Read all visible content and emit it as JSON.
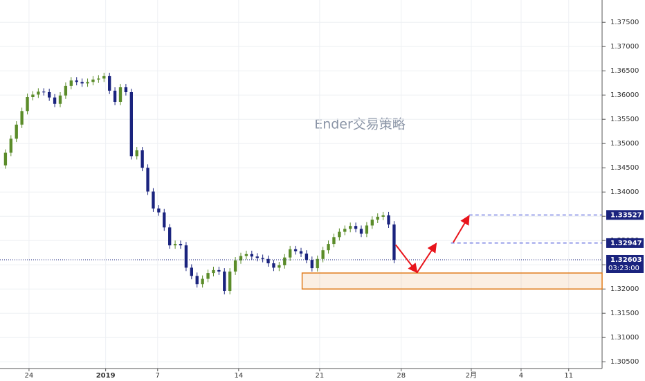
{
  "chart_data": {
    "type": "candlestick",
    "watermark": "Ender交易策略",
    "x": [
      1,
      2,
      3,
      4,
      5,
      6,
      7,
      8,
      9,
      10,
      11,
      12,
      13,
      14,
      15,
      16,
      17,
      18,
      19,
      20,
      21,
      22,
      23,
      24,
      25,
      26,
      27,
      28,
      29,
      30,
      31,
      32,
      33,
      34,
      35,
      36,
      37,
      38,
      39,
      40,
      41,
      42,
      43,
      44,
      45,
      46,
      47,
      48,
      49,
      50,
      51,
      52,
      53,
      54,
      55,
      56,
      57,
      58,
      59,
      60,
      61,
      62,
      63,
      64,
      65,
      66,
      67,
      68,
      69,
      70,
      71,
      72
    ],
    "open": [
      1.3455,
      1.3481,
      1.351,
      1.3539,
      1.3567,
      1.3596,
      1.3601,
      1.3607,
      1.3606,
      1.3595,
      1.3582,
      1.3599,
      1.3619,
      1.363,
      1.3627,
      1.3624,
      1.3627,
      1.3632,
      1.3634,
      1.3639,
      1.3609,
      1.3586,
      1.3616,
      1.3606,
      1.3474,
      1.3486,
      1.345,
      1.3401,
      1.3366,
      1.3358,
      1.3327,
      1.329,
      1.3293,
      1.329,
      1.3244,
      1.3227,
      1.321,
      1.3221,
      1.3233,
      1.3239,
      1.3236,
      1.3196,
      1.3236,
      1.3259,
      1.3268,
      1.3272,
      1.3267,
      1.3264,
      1.3262,
      1.3253,
      1.3244,
      1.3249,
      1.3265,
      1.3282,
      1.3278,
      1.3273,
      1.326,
      1.3243,
      1.3262,
      1.328,
      1.3293,
      1.3307,
      1.3318,
      1.3324,
      1.333,
      1.3324,
      1.3314,
      1.3331,
      1.3343,
      1.3349,
      1.3352,
      1.3333
    ],
    "high": [
      1.3488,
      1.3517,
      1.3546,
      1.3574,
      1.3603,
      1.3608,
      1.3614,
      1.3614,
      1.3613,
      1.3602,
      1.3606,
      1.3626,
      1.3637,
      1.3637,
      1.3634,
      1.3634,
      1.3639,
      1.3641,
      1.3646,
      1.3646,
      1.3616,
      1.3623,
      1.3623,
      1.3613,
      1.3493,
      1.3493,
      1.3457,
      1.3408,
      1.3373,
      1.3365,
      1.3334,
      1.33,
      1.33,
      1.3297,
      1.3251,
      1.3234,
      1.3228,
      1.324,
      1.3246,
      1.3246,
      1.3243,
      1.3243,
      1.3266,
      1.3275,
      1.3279,
      1.3279,
      1.3274,
      1.3271,
      1.3269,
      1.326,
      1.3256,
      1.3272,
      1.3289,
      1.3289,
      1.3285,
      1.328,
      1.3267,
      1.3269,
      1.3287,
      1.33,
      1.3314,
      1.3325,
      1.3331,
      1.3337,
      1.3337,
      1.3331,
      1.3338,
      1.335,
      1.3356,
      1.3359,
      1.3359,
      1.334
    ],
    "low": [
      1.3448,
      1.3474,
      1.3503,
      1.3532,
      1.356,
      1.3589,
      1.3594,
      1.3599,
      1.3588,
      1.3575,
      1.3575,
      1.3592,
      1.3612,
      1.362,
      1.3617,
      1.3617,
      1.362,
      1.3625,
      1.3627,
      1.3602,
      1.3579,
      1.3579,
      1.3599,
      1.3467,
      1.3467,
      1.3443,
      1.3394,
      1.3359,
      1.3351,
      1.332,
      1.3283,
      1.3283,
      1.3283,
      1.3237,
      1.322,
      1.3203,
      1.3203,
      1.3214,
      1.3226,
      1.3229,
      1.3189,
      1.3189,
      1.3229,
      1.3252,
      1.3261,
      1.326,
      1.3257,
      1.3255,
      1.3246,
      1.3237,
      1.3237,
      1.3242,
      1.3258,
      1.3271,
      1.3266,
      1.3253,
      1.3236,
      1.3236,
      1.3255,
      1.3273,
      1.3286,
      1.33,
      1.3311,
      1.3317,
      1.3317,
      1.3307,
      1.3307,
      1.3324,
      1.3336,
      1.3342,
      1.3326,
      1.3253
    ],
    "close": [
      1.3481,
      1.351,
      1.3539,
      1.3567,
      1.3596,
      1.3601,
      1.3607,
      1.3606,
      1.3595,
      1.3582,
      1.3599,
      1.3619,
      1.363,
      1.3627,
      1.3624,
      1.3627,
      1.3632,
      1.3634,
      1.3639,
      1.3609,
      1.3586,
      1.3616,
      1.3606,
      1.3474,
      1.3486,
      1.345,
      1.3401,
      1.3366,
      1.3358,
      1.3327,
      1.329,
      1.3293,
      1.329,
      1.3244,
      1.3227,
      1.321,
      1.3221,
      1.3233,
      1.3239,
      1.3236,
      1.3196,
      1.3236,
      1.3259,
      1.3268,
      1.3272,
      1.3267,
      1.3264,
      1.3262,
      1.3253,
      1.3244,
      1.3249,
      1.3265,
      1.3282,
      1.3278,
      1.3273,
      1.326,
      1.3243,
      1.3262,
      1.328,
      1.3293,
      1.3307,
      1.3318,
      1.3324,
      1.333,
      1.3324,
      1.3314,
      1.3331,
      1.3343,
      1.3349,
      1.3352,
      1.3333,
      1.326
    ],
    "up_color": "#5b8c2a",
    "down_color": "#1a237e",
    "xlim": [
      0,
      110
    ],
    "ylim": [
      1.3036,
      1.3796
    ],
    "xticks": [
      {
        "value": 5.3,
        "label": "24"
      },
      {
        "value": 19.3,
        "label": "2019"
      },
      {
        "value": 28.8,
        "label": "7"
      },
      {
        "value": 43.6,
        "label": "14"
      },
      {
        "value": 58.4,
        "label": "21"
      },
      {
        "value": 73.3,
        "label": "28"
      },
      {
        "value": 86.1,
        "label": "2月"
      },
      {
        "value": 95.2,
        "label": "4"
      },
      {
        "value": 103.9,
        "label": "11"
      }
    ],
    "yticks": [
      {
        "value": 1.305,
        "label": "1.30500"
      },
      {
        "value": 1.31,
        "label": "1.31000"
      },
      {
        "value": 1.315,
        "label": "1.31500"
      },
      {
        "value": 1.32,
        "label": "1.32000"
      },
      {
        "value": 1.325,
        "label": "1.32500"
      },
      {
        "value": 1.33,
        "label": "1.33000"
      },
      {
        "value": 1.335,
        "label": "1.33500"
      },
      {
        "value": 1.34,
        "label": "1.34000"
      },
      {
        "value": 1.345,
        "label": "1.34500"
      },
      {
        "value": 1.35,
        "label": "1.35000"
      },
      {
        "value": 1.355,
        "label": "1.35500"
      },
      {
        "value": 1.36,
        "label": "1.36000"
      },
      {
        "value": 1.365,
        "label": "1.36500"
      },
      {
        "value": 1.37,
        "label": "1.37000"
      },
      {
        "value": 1.375,
        "label": "1.37500"
      }
    ],
    "grid": true,
    "levels": [
      {
        "value": 1.33527,
        "x_start": 85.7,
        "color": "#3d4bd8"
      },
      {
        "value": 1.32947,
        "x_start": 82.4,
        "color": "#3d4bd8"
      }
    ],
    "last_price": {
      "value": 1.32603,
      "timer": "03:23:00",
      "color": "#1a237e"
    },
    "zone": {
      "x": [
        55.2,
        110
      ],
      "y": [
        1.32,
        1.3233
      ],
      "color": "#e07b1a"
    },
    "arrows": [
      {
        "x": [
          72.3,
          76.2,
          79.7
        ],
        "y": [
          1.3291,
          1.3234,
          1.3294
        ],
        "color": "#e8141b"
      },
      {
        "x": [
          82.8,
          85.7
        ],
        "y": [
          1.3296,
          1.3351
        ],
        "color": "#e8141b"
      }
    ]
  }
}
